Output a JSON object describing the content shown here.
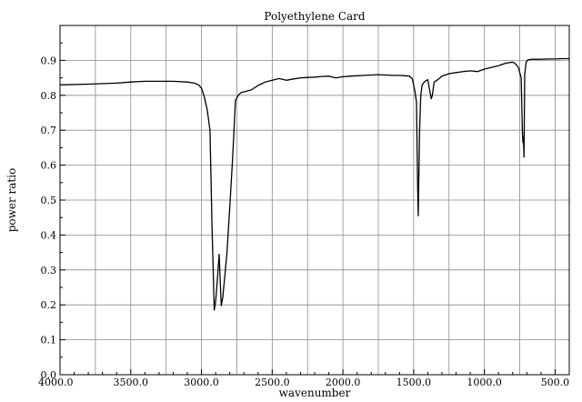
{
  "chart_data": {
    "type": "line",
    "title": "Polyethylene Card",
    "xlabel": "wavenumber",
    "ylabel": "power ratio",
    "xlim": [
      4000.0,
      400.0
    ],
    "ylim": [
      0.0,
      1.0
    ],
    "x_reversed": true,
    "grid": true,
    "x_ticks": [
      {
        "value": 4000,
        "label": "4000.0"
      },
      {
        "value": 3500,
        "label": "3500.0"
      },
      {
        "value": 3000,
        "label": "3000.0"
      },
      {
        "value": 2500,
        "label": "2500.0"
      },
      {
        "value": 2000,
        "label": "2000.0"
      },
      {
        "value": 1500,
        "label": "1500.0"
      },
      {
        "value": 1000,
        "label": "1000.0"
      },
      {
        "value": 500,
        "label": "500.0"
      }
    ],
    "y_ticks": [
      {
        "value": 0.0,
        "label": "0.0"
      },
      {
        "value": 0.1,
        "label": "0.1"
      },
      {
        "value": 0.2,
        "label": "0.2"
      },
      {
        "value": 0.3,
        "label": "0.3"
      },
      {
        "value": 0.4,
        "label": "0.4"
      },
      {
        "value": 0.5,
        "label": "0.5"
      },
      {
        "value": 0.6,
        "label": "0.6"
      },
      {
        "value": 0.7,
        "label": "0.7"
      },
      {
        "value": 0.8,
        "label": "0.8"
      },
      {
        "value": 0.9,
        "label": "0.9"
      }
    ],
    "series": [
      {
        "color": "#000000",
        "x": [
          4000,
          3800,
          3600,
          3500,
          3400,
          3200,
          3100,
          3050,
          3020,
          3000,
          2980,
          2960,
          2940,
          2925,
          2910,
          2900,
          2890,
          2875,
          2860,
          2850,
          2840,
          2820,
          2800,
          2780,
          2760,
          2740,
          2720,
          2700,
          2650,
          2600,
          2550,
          2500,
          2450,
          2400,
          2350,
          2300,
          2250,
          2200,
          2150,
          2100,
          2050,
          2000,
          1950,
          1900,
          1850,
          1800,
          1750,
          1700,
          1650,
          1600,
          1560,
          1530,
          1510,
          1490,
          1480,
          1472,
          1468,
          1464,
          1458,
          1450,
          1440,
          1420,
          1400,
          1385,
          1375,
          1368,
          1355,
          1340,
          1320,
          1300,
          1250,
          1200,
          1150,
          1100,
          1050,
          1000,
          950,
          900,
          850,
          800,
          780,
          760,
          740,
          732,
          728,
          724,
          720,
          715,
          705,
          690,
          660,
          600,
          550,
          500,
          450,
          400
        ],
        "y": [
          0.83,
          0.832,
          0.835,
          0.838,
          0.84,
          0.84,
          0.838,
          0.835,
          0.83,
          0.82,
          0.795,
          0.76,
          0.7,
          0.42,
          0.185,
          0.21,
          0.26,
          0.345,
          0.198,
          0.22,
          0.26,
          0.35,
          0.48,
          0.62,
          0.785,
          0.8,
          0.808,
          0.81,
          0.815,
          0.828,
          0.838,
          0.843,
          0.848,
          0.843,
          0.847,
          0.85,
          0.851,
          0.852,
          0.854,
          0.855,
          0.85,
          0.853,
          0.855,
          0.856,
          0.857,
          0.858,
          0.859,
          0.858,
          0.857,
          0.857,
          0.856,
          0.855,
          0.848,
          0.81,
          0.78,
          0.55,
          0.455,
          0.55,
          0.7,
          0.8,
          0.83,
          0.84,
          0.845,
          0.81,
          0.79,
          0.8,
          0.838,
          0.842,
          0.848,
          0.855,
          0.862,
          0.865,
          0.868,
          0.87,
          0.868,
          0.875,
          0.88,
          0.885,
          0.892,
          0.895,
          0.89,
          0.88,
          0.85,
          0.7,
          0.665,
          0.68,
          0.623,
          0.86,
          0.895,
          0.902,
          0.903,
          0.903,
          0.904,
          0.904,
          0.905,
          0.905
        ]
      }
    ]
  }
}
